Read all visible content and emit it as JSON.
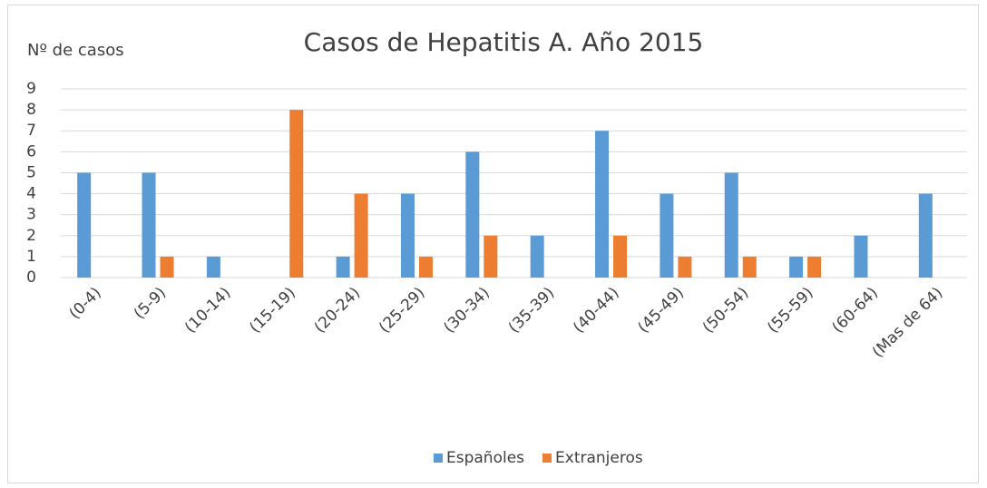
{
  "chart_data": {
    "type": "bar",
    "title": "Casos de Hepatitis A. Año 2015",
    "y_label": "Nº de casos",
    "categories": [
      "(0-4)",
      "(5-9)",
      "(10-14)",
      "(15-19)",
      "(20-24)",
      "(25-29)",
      "(30-34)",
      "(35-39)",
      "(40-44)",
      "(45-49)",
      "(50-54)",
      "(55-59)",
      "(60-64)",
      "(Mas de 64)"
    ],
    "series": [
      {
        "name": "Españoles",
        "color": "#5b9bd5",
        "values": [
          5,
          5,
          1,
          0,
          1,
          4,
          6,
          2,
          7,
          4,
          5,
          1,
          2,
          4
        ]
      },
      {
        "name": "Extranjeros",
        "color": "#ed7d31",
        "values": [
          0,
          1,
          0,
          8,
          4,
          1,
          2,
          0,
          2,
          1,
          1,
          1,
          0,
          0
        ]
      }
    ],
    "ylim": [
      0,
      9
    ],
    "yticks": [
      0,
      1,
      2,
      3,
      4,
      5,
      6,
      7,
      8,
      9
    ],
    "grid": true,
    "legend": "bottom"
  }
}
